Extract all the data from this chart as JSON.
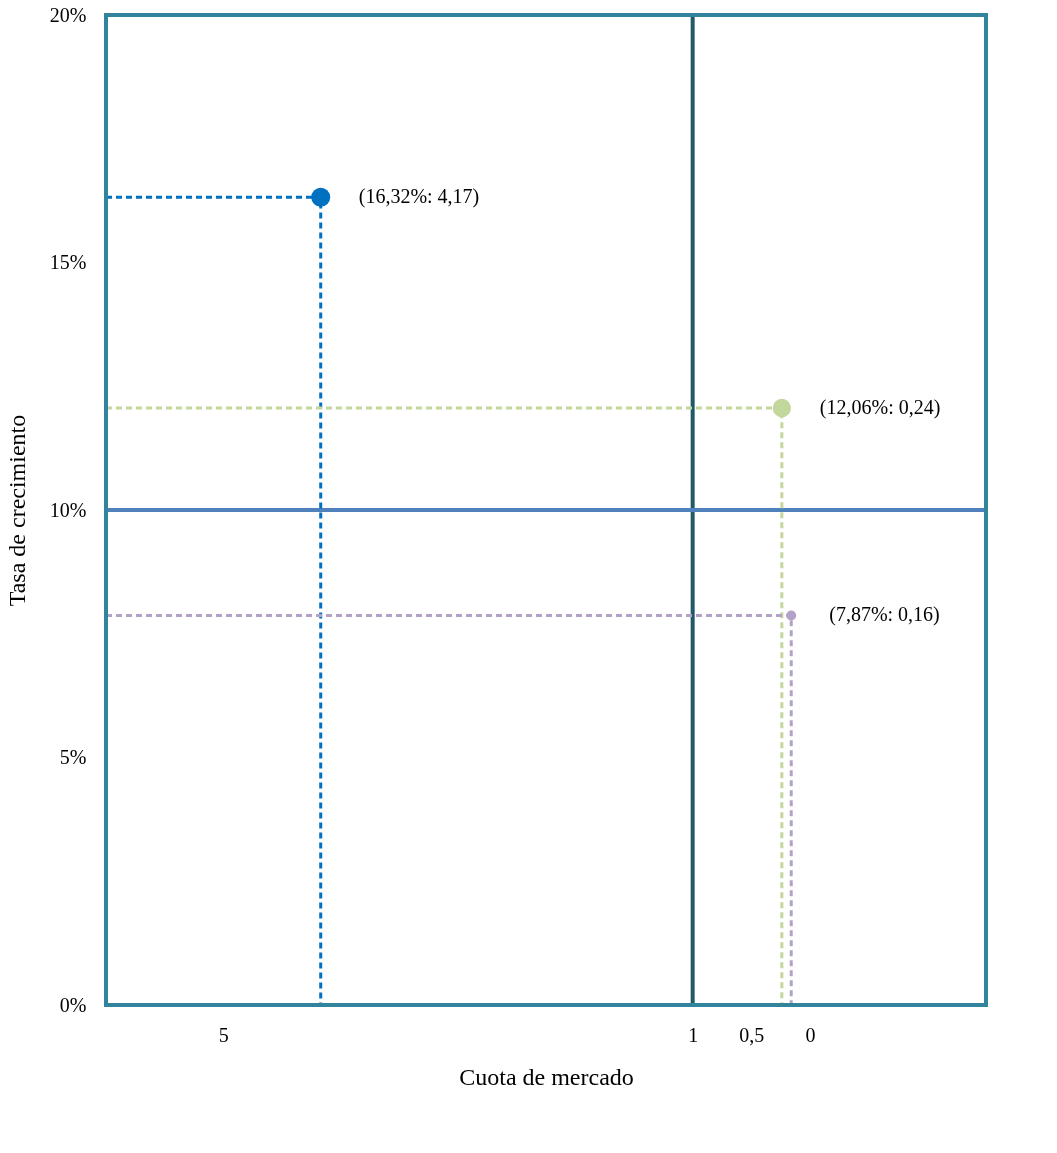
{
  "chart_data": {
    "type": "bubble",
    "xlabel": "Cuota de mercado",
    "ylabel": "Tasa de crecimiento",
    "xlim": [
      6,
      -1.5
    ],
    "xticks": [
      5,
      1,
      {
        "value": 0.5,
        "label": "0,5"
      },
      0
    ],
    "ylim": [
      0,
      20
    ],
    "yticks": [
      {
        "value": 0,
        "label": "0%"
      },
      {
        "value": 5,
        "label": "5%"
      },
      {
        "value": 10,
        "label": "10%"
      },
      {
        "value": 15,
        "label": "15%"
      },
      {
        "value": 20,
        "label": "20%"
      }
    ],
    "grid": false,
    "ref_lines": [
      {
        "axis": "x",
        "value": 1,
        "color": "#215968"
      },
      {
        "axis": "y",
        "value": 10,
        "color": "#4f81bd"
      }
    ],
    "series": [
      {
        "color": "#0070c0",
        "x": [
          4.17
        ],
        "values": [
          16.32
        ],
        "sizes": [
          1
        ],
        "value_labels": [
          "(16,32%: 4,17)"
        ]
      },
      {
        "color": "#c3d69b",
        "x": [
          0.24
        ],
        "values": [
          12.06
        ],
        "sizes": [
          0.93
        ],
        "value_labels": [
          "(12,06%: 0,24)"
        ]
      },
      {
        "color": "#b2a2c7",
        "x": [
          0.16
        ],
        "values": [
          7.87
        ],
        "sizes": [
          0.26
        ],
        "value_labels": [
          "(7,87%: 0,16)"
        ]
      },
      {
        "type": "line",
        "line_style": "dashed",
        "color": "#0070c0",
        "x": [
          6,
          4.17,
          4.17
        ],
        "values": [
          16.32,
          16.32,
          0
        ]
      },
      {
        "type": "line",
        "line_style": "dashed",
        "color": "#c3d69b",
        "x": [
          6,
          0.24,
          0.24
        ],
        "values": [
          12.06,
          12.06,
          0
        ]
      },
      {
        "type": "line",
        "line_style": "dashed",
        "color": "#b2a2c7",
        "x": [
          6,
          0.16,
          0.16
        ],
        "values": [
          7.87,
          7.87,
          0
        ]
      }
    ]
  }
}
